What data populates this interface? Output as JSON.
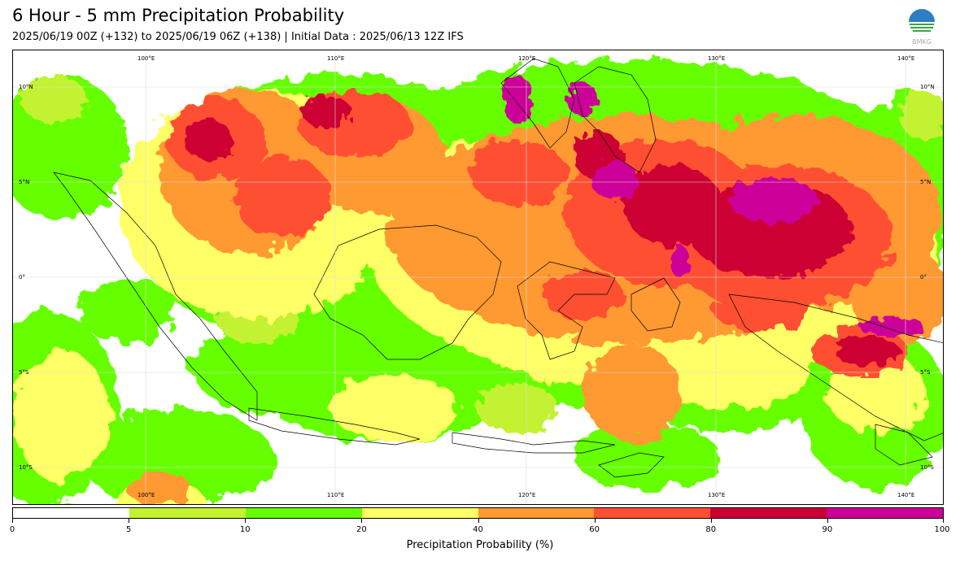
{
  "header": {
    "title": "6 Hour - 5 mm Precipitation Probability",
    "subtitle": "2025/06/19 00Z (+132) to 2025/06/19 06Z (+138) | Initial Data : 2025/06/13 12Z IFS",
    "logo_text": "BMKG"
  },
  "map": {
    "lon_labels": [
      "100°E",
      "110°E",
      "120°E",
      "130°E",
      "140°E"
    ],
    "lat_labels": [
      "10°N",
      "5°N",
      "0°",
      "5°S",
      "10°S"
    ]
  },
  "colorbar": {
    "ticks": [
      "0",
      "5",
      "10",
      "20",
      "40",
      "60",
      "80",
      "90",
      "100"
    ],
    "colors": [
      "#ffffff",
      "#c3f230",
      "#66ff00",
      "#ffff66",
      "#ff9933",
      "#ff5033",
      "#cc0033",
      "#cc0099"
    ],
    "label": "Precipitation Probability (%)"
  }
}
